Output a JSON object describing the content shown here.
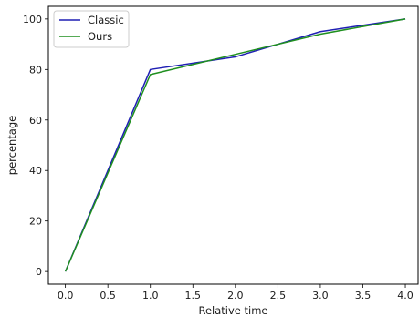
{
  "chart_data": {
    "type": "line",
    "xlabel": "Relative time",
    "ylabel": "percentage",
    "xlim": [
      -0.2,
      4.15
    ],
    "ylim": [
      -5,
      105
    ],
    "xticks": [
      "0.0",
      "0.5",
      "1.0",
      "1.5",
      "2.0",
      "2.5",
      "3.0",
      "3.5",
      "4.0"
    ],
    "yticks": [
      "0",
      "20",
      "40",
      "60",
      "80",
      "100"
    ],
    "grid": false,
    "legend_position": "top-left",
    "series": [
      {
        "name": "Classic",
        "color": "#1f1fb4",
        "x": [
          0,
          1,
          2,
          3,
          4
        ],
        "y": [
          0,
          80,
          85,
          95,
          100
        ]
      },
      {
        "name": "Ours",
        "color": "#1f8f1f",
        "x": [
          0,
          1,
          2,
          3,
          4
        ],
        "y": [
          0,
          78,
          86,
          94,
          100
        ]
      }
    ]
  }
}
